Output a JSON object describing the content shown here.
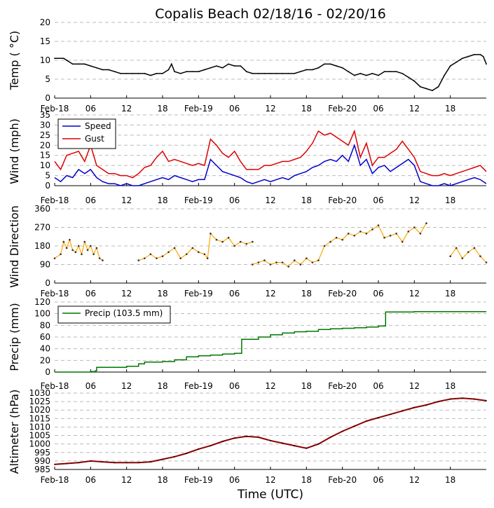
{
  "title": "Copalis Beach 02/18/16 - 02/20/16",
  "xlabel": "Time (UTC)",
  "x_ticks": [
    {
      "h": 0,
      "label": "Feb-18"
    },
    {
      "h": 6,
      "label": "06"
    },
    {
      "h": 12,
      "label": "12"
    },
    {
      "h": 18,
      "label": "18"
    },
    {
      "h": 24,
      "label": "Feb-19"
    },
    {
      "h": 30,
      "label": "06"
    },
    {
      "h": 36,
      "label": "12"
    },
    {
      "h": 42,
      "label": "18"
    },
    {
      "h": 48,
      "label": "Feb-20"
    },
    {
      "h": 54,
      "label": "06"
    },
    {
      "h": 60,
      "label": "12"
    },
    {
      "h": 66,
      "label": "18"
    }
  ],
  "colors": {
    "temp": "#000000",
    "speed": "#0000cc",
    "gust": "#dd0000",
    "dir": "#ffa500",
    "precip": "#007700",
    "alt": "#8b0000",
    "grid": "#bbbbbb"
  },
  "chart_data": [
    {
      "type": "line",
      "name": "temp",
      "ylabel": "Temp ( °C)",
      "ylim": [
        0,
        20
      ],
      "yticks": [
        "0",
        "5",
        "10",
        "15",
        "20"
      ],
      "xlim": [
        0,
        72
      ],
      "series": [
        {
          "name": "Temp",
          "x": [
            0,
            1.5,
            2,
            3,
            4,
            5,
            6,
            7,
            8,
            9,
            10,
            11,
            12,
            13,
            14,
            15,
            16,
            17,
            18,
            19,
            19.5,
            20,
            21,
            22,
            23,
            24,
            25,
            26,
            27,
            28,
            29,
            30,
            31,
            32,
            33,
            34,
            35,
            36,
            37,
            38,
            39,
            40,
            41,
            42,
            43,
            44,
            45,
            46,
            47,
            48,
            49,
            50,
            51,
            52,
            53,
            54,
            55,
            56,
            57,
            58,
            59,
            60,
            61,
            62,
            63,
            64,
            65,
            66,
            67,
            68,
            69,
            70,
            71,
            71.5,
            72
          ],
          "values": [
            10.5,
            10.5,
            10,
            9,
            9,
            9,
            8.5,
            8,
            7.5,
            7.5,
            7,
            6.5,
            6.5,
            6.5,
            6.5,
            6.5,
            6,
            6.5,
            6.5,
            7.5,
            9,
            7,
            6.5,
            7,
            7,
            7,
            7.5,
            8,
            8.5,
            8,
            9,
            8.5,
            8.5,
            7,
            6.5,
            6.5,
            6.5,
            6.5,
            6.5,
            6.5,
            6.5,
            6.5,
            7,
            7.5,
            7.5,
            8,
            9,
            9,
            8.5,
            8,
            7,
            6,
            6.5,
            6,
            6.5,
            6,
            7,
            7,
            7,
            6.5,
            5.5,
            4.5,
            3,
            2.5,
            2,
            3,
            6,
            8.5,
            9.5,
            10.5,
            11,
            11.5,
            11.5,
            11,
            9
          ]
        }
      ]
    },
    {
      "type": "line",
      "name": "wind",
      "ylabel": "Wind (mph)",
      "ylim": [
        0,
        35
      ],
      "yticks": [
        "0",
        "5",
        "10",
        "15",
        "20",
        "25",
        "30",
        "35"
      ],
      "xlim": [
        0,
        72
      ],
      "legend": [
        "Speed",
        "Gust"
      ],
      "series": [
        {
          "name": "Speed",
          "x": [
            0,
            1,
            2,
            3,
            4,
            5,
            6,
            7,
            8,
            9,
            10,
            11,
            12,
            13,
            14,
            15,
            16,
            17,
            18,
            19,
            20,
            21,
            22,
            23,
            24,
            25,
            26,
            27,
            28,
            29,
            30,
            31,
            32,
            33,
            34,
            35,
            36,
            37,
            38,
            39,
            40,
            41,
            42,
            43,
            44,
            45,
            46,
            47,
            48,
            49,
            50,
            51,
            52,
            53,
            54,
            55,
            56,
            57,
            58,
            59,
            60,
            61,
            62,
            63,
            64,
            65,
            66,
            67,
            68,
            69,
            70,
            71,
            72
          ],
          "values": [
            4,
            2,
            5,
            4,
            8,
            6,
            8,
            4,
            2,
            1,
            1,
            0,
            1,
            0,
            0,
            1,
            2,
            3,
            4,
            3,
            5,
            4,
            3,
            2,
            3,
            3,
            13,
            10,
            7,
            6,
            5,
            4,
            2,
            1,
            2,
            3,
            2,
            3,
            4,
            3,
            5,
            6,
            7,
            9,
            10,
            12,
            13,
            12,
            15,
            12,
            20,
            10,
            13,
            6,
            9,
            10,
            7,
            9,
            11,
            13,
            10,
            2,
            1,
            0,
            0,
            1,
            0,
            1,
            2,
            3,
            4,
            3,
            1
          ]
        },
        {
          "name": "Gust",
          "x": [
            0,
            1,
            2,
            3,
            4,
            5,
            6,
            7,
            8,
            9,
            10,
            11,
            12,
            13,
            14,
            15,
            16,
            17,
            18,
            19,
            20,
            21,
            22,
            23,
            24,
            25,
            26,
            27,
            28,
            29,
            30,
            31,
            32,
            33,
            34,
            35,
            36,
            37,
            38,
            39,
            40,
            41,
            42,
            43,
            44,
            45,
            46,
            47,
            48,
            49,
            50,
            51,
            52,
            53,
            54,
            55,
            56,
            57,
            58,
            59,
            60,
            61,
            62,
            63,
            64,
            65,
            66,
            67,
            68,
            69,
            70,
            71,
            72
          ],
          "values": [
            12,
            8,
            15,
            16,
            17,
            12,
            20,
            10,
            8,
            6,
            6,
            5,
            5,
            4,
            6,
            9,
            10,
            14,
            17,
            12,
            13,
            12,
            11,
            10,
            11,
            10,
            23,
            20,
            16,
            14,
            17,
            12,
            8,
            8,
            8,
            10,
            10,
            11,
            12,
            12,
            13,
            14,
            17,
            21,
            27,
            25,
            26,
            24,
            22,
            20,
            27,
            14,
            21,
            10,
            14,
            14,
            16,
            18,
            22,
            18,
            14,
            7,
            6,
            5,
            5,
            6,
            5,
            6,
            7,
            8,
            9,
            10,
            7
          ]
        }
      ]
    },
    {
      "type": "scatter",
      "name": "direction",
      "ylabel": "Wind Direction",
      "ylim": [
        0,
        360
      ],
      "yticks": [
        "0",
        "90",
        "180",
        "270",
        "360"
      ],
      "xlim": [
        0,
        72
      ],
      "series": [
        {
          "name": "Direction",
          "segments": [
            {
              "x": [
                0,
                1,
                1.5,
                2,
                2.5,
                3,
                3.5,
                4,
                4.5,
                5,
                5.5,
                6,
                6.5,
                7,
                7.5,
                8
              ],
              "values": [
                120,
                140,
                200,
                170,
                210,
                160,
                150,
                180,
                140,
                200,
                160,
                180,
                140,
                170,
                120,
                110
              ]
            },
            {
              "x": [
                14,
                15,
                16,
                17,
                18,
                19,
                20,
                21,
                22,
                23,
                24,
                25,
                25.5,
                26,
                27,
                28,
                29,
                30,
                31,
                32,
                33
              ],
              "values": [
                110,
                120,
                140,
                120,
                130,
                150,
                170,
                120,
                140,
                170,
                150,
                140,
                120,
                240,
                210,
                200,
                220,
                180,
                200,
                190,
                200
              ]
            },
            {
              "x": [
                33,
                34,
                35,
                36,
                37,
                38,
                39,
                40,
                41,
                42,
                43,
                44,
                45,
                46,
                47,
                48,
                49,
                50,
                51,
                52,
                53,
                54,
                55,
                56,
                57,
                58,
                59,
                60,
                61,
                62
              ],
              "values": [
                90,
                100,
                110,
                90,
                100,
                100,
                80,
                110,
                90,
                120,
                100,
                110,
                180,
                200,
                220,
                210,
                240,
                230,
                250,
                240,
                260,
                280,
                220,
                230,
                240,
                200,
                250,
                270,
                240,
                290
              ]
            },
            {
              "x": [
                66,
                67,
                68,
                69,
                70,
                71,
                72
              ],
              "values": [
                130,
                170,
                120,
                150,
                170,
                130,
                100
              ]
            }
          ]
        }
      ]
    },
    {
      "type": "line",
      "name": "precip",
      "ylabel": "Precip (mm)",
      "ylim": [
        0,
        120
      ],
      "yticks": [
        "0",
        "20",
        "40",
        "60",
        "80",
        "100",
        "120"
      ],
      "xlim": [
        0,
        72
      ],
      "legend": [
        "Precip (103.5 mm)"
      ],
      "series": [
        {
          "name": "Precip (103.5 mm)",
          "x": [
            0,
            6,
            6.8,
            7,
            12,
            14,
            15,
            18,
            20,
            22,
            24,
            26,
            28,
            30,
            31,
            31.2,
            34,
            36,
            38,
            40,
            42,
            44,
            46,
            48,
            50,
            52,
            54,
            55,
            55.2,
            60,
            65,
            70,
            72
          ],
          "values": [
            0,
            1,
            2,
            8,
            10,
            14,
            17,
            18,
            21,
            26,
            28,
            29,
            31,
            32,
            32,
            56,
            60,
            64,
            67,
            69,
            70,
            73,
            74,
            75,
            76,
            77,
            79,
            79,
            103,
            103.5,
            103.5,
            103.5,
            103.5
          ]
        }
      ]
    },
    {
      "type": "line",
      "name": "altimeter",
      "ylabel": "Altimeter (hPa)",
      "ylim": [
        985,
        1030
      ],
      "yticks": [
        "985",
        "990",
        "995",
        "1000",
        "1005",
        "1010",
        "1015",
        "1020",
        "1025",
        "1030"
      ],
      "xlim": [
        0,
        72
      ],
      "series": [
        {
          "name": "Altimeter",
          "x": [
            0,
            2,
            4,
            6,
            8,
            10,
            12,
            14,
            16,
            18,
            20,
            22,
            24,
            26,
            28,
            30,
            32,
            34,
            36,
            38,
            40,
            42,
            44,
            46,
            48,
            50,
            52,
            54,
            56,
            58,
            60,
            62,
            64,
            66,
            68,
            70,
            72
          ],
          "values": [
            988,
            988.5,
            989,
            990,
            989.5,
            989,
            989,
            989,
            989.5,
            991,
            992.5,
            994.5,
            997,
            999,
            1001.5,
            1003.5,
            1004.5,
            1004,
            1002,
            1000.5,
            999,
            997.5,
            1000,
            1004,
            1007.5,
            1010.5,
            1013.5,
            1015.5,
            1017.5,
            1019.5,
            1021.5,
            1023,
            1025,
            1026.5,
            1027,
            1026.5,
            1025.5
          ]
        }
      ]
    }
  ]
}
